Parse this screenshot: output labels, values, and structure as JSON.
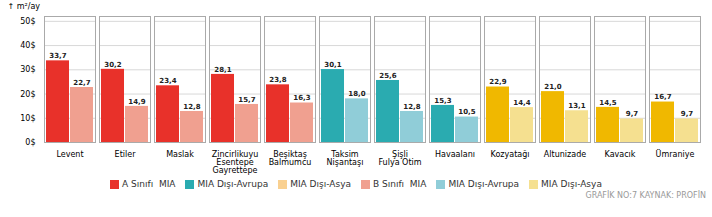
{
  "chart_data": {
    "type": "bar",
    "categories": [
      "Levent",
      "Etiler",
      "Maslak",
      "Zincirlikuyu\nEsentepe\nGayrettepe",
      "Beşiktaş\nBalmumcu",
      "Taksim\nNişantaşı",
      "Şişli\nFulya Otim",
      "Havaalanı",
      "Kozyatağı",
      "Altunizade",
      "Kavacık",
      "Ümraniye"
    ],
    "series": [
      {
        "name": "A Sınıfı  MIA",
        "color": "#e8312a",
        "values": [
          33.7,
          30.2,
          23.4,
          28.1,
          23.8,
          null,
          null,
          null,
          null,
          null,
          null,
          null
        ],
        "value_labels": [
          "33,7",
          "30,2",
          "23,4",
          "28,1",
          "23,8",
          null,
          null,
          null,
          null,
          null,
          null,
          null
        ]
      },
      {
        "name": "MIA Dışı-Avrupa",
        "color": "#2aabb0",
        "values": [
          null,
          null,
          null,
          null,
          null,
          30.1,
          25.6,
          15.3,
          null,
          null,
          null,
          null
        ],
        "value_labels": [
          null,
          null,
          null,
          null,
          null,
          "30,1",
          "25,6",
          "15,3",
          null,
          null,
          null,
          null
        ]
      },
      {
        "name": "MIA Dışı-Asya",
        "color": "#f9d090",
        "colors": [
          null,
          null,
          null,
          null,
          null,
          null,
          null,
          null,
          "#f0b800",
          "#f0b800",
          "#f0b800",
          "#f0b800"
        ],
        "values": [
          null,
          null,
          null,
          null,
          null,
          null,
          null,
          null,
          22.9,
          21.0,
          14.5,
          16.7
        ],
        "value_labels": [
          null,
          null,
          null,
          null,
          null,
          null,
          null,
          null,
          "22,9",
          "21,0",
          "14,5",
          "16,7"
        ]
      },
      {
        "name": "B Sınıfı  MIA",
        "color": "#f0a090",
        "values": [
          22.7,
          14.9,
          12.8,
          15.7,
          16.3,
          null,
          null,
          null,
          null,
          null,
          null,
          null
        ],
        "value_labels": [
          "22,7",
          "14,9",
          "12,8",
          "15,7",
          "16,3",
          null,
          null,
          null,
          null,
          null,
          null,
          null
        ]
      },
      {
        "name": "MIA Dışı-Avrupa",
        "color": "#90cdd8",
        "values": [
          null,
          null,
          null,
          null,
          null,
          18.0,
          12.8,
          10.5,
          null,
          null,
          null,
          null
        ],
        "value_labels": [
          null,
          null,
          null,
          null,
          null,
          "18,0",
          "12,8",
          "10,5",
          null,
          null,
          null,
          null
        ]
      },
      {
        "name": "MIA Dışı-Asya",
        "color": "#f5e090",
        "values": [
          null,
          null,
          null,
          null,
          null,
          null,
          null,
          null,
          14.4,
          13.1,
          9.7,
          9.7
        ],
        "value_labels": [
          null,
          null,
          null,
          null,
          null,
          null,
          null,
          null,
          "14,4",
          "13,1",
          "9,7",
          "9,7"
        ]
      }
    ],
    "ylabel": "m²/ay",
    "ylim": [
      0,
      52
    ],
    "yticks": [
      {
        "value": 0,
        "label": "0$"
      },
      {
        "value": 10,
        "label": "10$"
      },
      {
        "value": 20,
        "label": "20$"
      },
      {
        "value": 30,
        "label": "30$"
      },
      {
        "value": 40,
        "label": "40$"
      },
      {
        "value": 50,
        "label": "50$"
      }
    ],
    "grid": true,
    "data_labels": true,
    "caption": "GRAFİK NO:7 KAYNAK: PROFİN"
  }
}
